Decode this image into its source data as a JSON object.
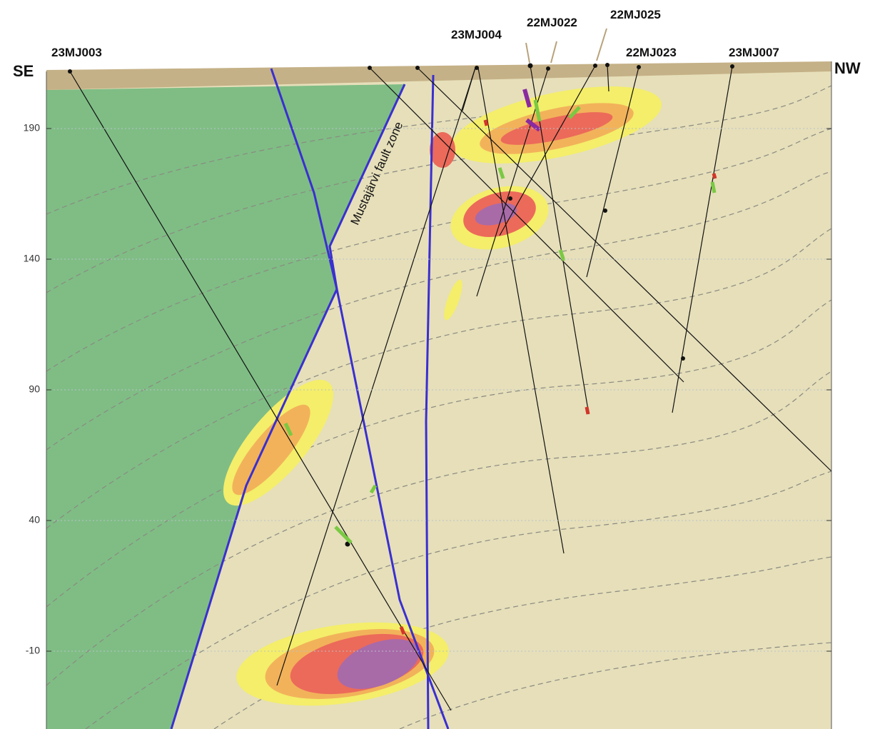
{
  "direction_labels": {
    "left": "SE",
    "right": "NW"
  },
  "drill_holes": [
    {
      "label": "23MJ003"
    },
    {
      "label": "23MJ004"
    },
    {
      "label": "22MJ022"
    },
    {
      "label": "22MJ025"
    },
    {
      "label": "22MJ023"
    },
    {
      "label": "23MJ007"
    }
  ],
  "fault_zone_label": "Mustajärvi fault zone",
  "elevation_ticks": [
    190,
    140,
    90,
    40,
    -10
  ]
}
